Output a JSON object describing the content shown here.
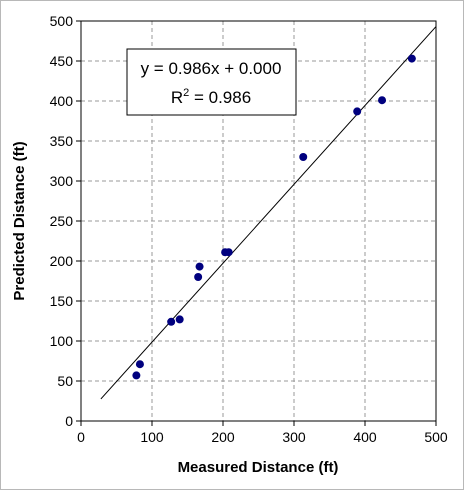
{
  "chart_data": {
    "type": "scatter",
    "xlabel": "Measured Distance (ft)",
    "ylabel": "Predicted Distance (ft)",
    "xlim": [
      0,
      500
    ],
    "ylim": [
      0,
      500
    ],
    "xticks": [
      0,
      100,
      200,
      300,
      400,
      500
    ],
    "yticks": [
      0,
      50,
      100,
      150,
      200,
      250,
      300,
      350,
      400,
      450,
      500
    ],
    "grid": true,
    "marker_color": "#00007f",
    "series": [
      {
        "x": [
          78,
          83,
          127,
          139,
          165,
          167,
          203,
          208,
          313,
          389,
          424,
          466
        ],
        "y": [
          57,
          71,
          124,
          127,
          180,
          193,
          211,
          211,
          330,
          387,
          401,
          453
        ]
      }
    ],
    "trendline": {
      "slope": 0.986,
      "intercept": 0.0,
      "x_range": [
        28,
        500
      ],
      "equation_line1": "y = 0.986x + 0.000",
      "r2_prefix": "R",
      "r2_sup": "2",
      "r2_suffix": " = 0.986"
    }
  }
}
